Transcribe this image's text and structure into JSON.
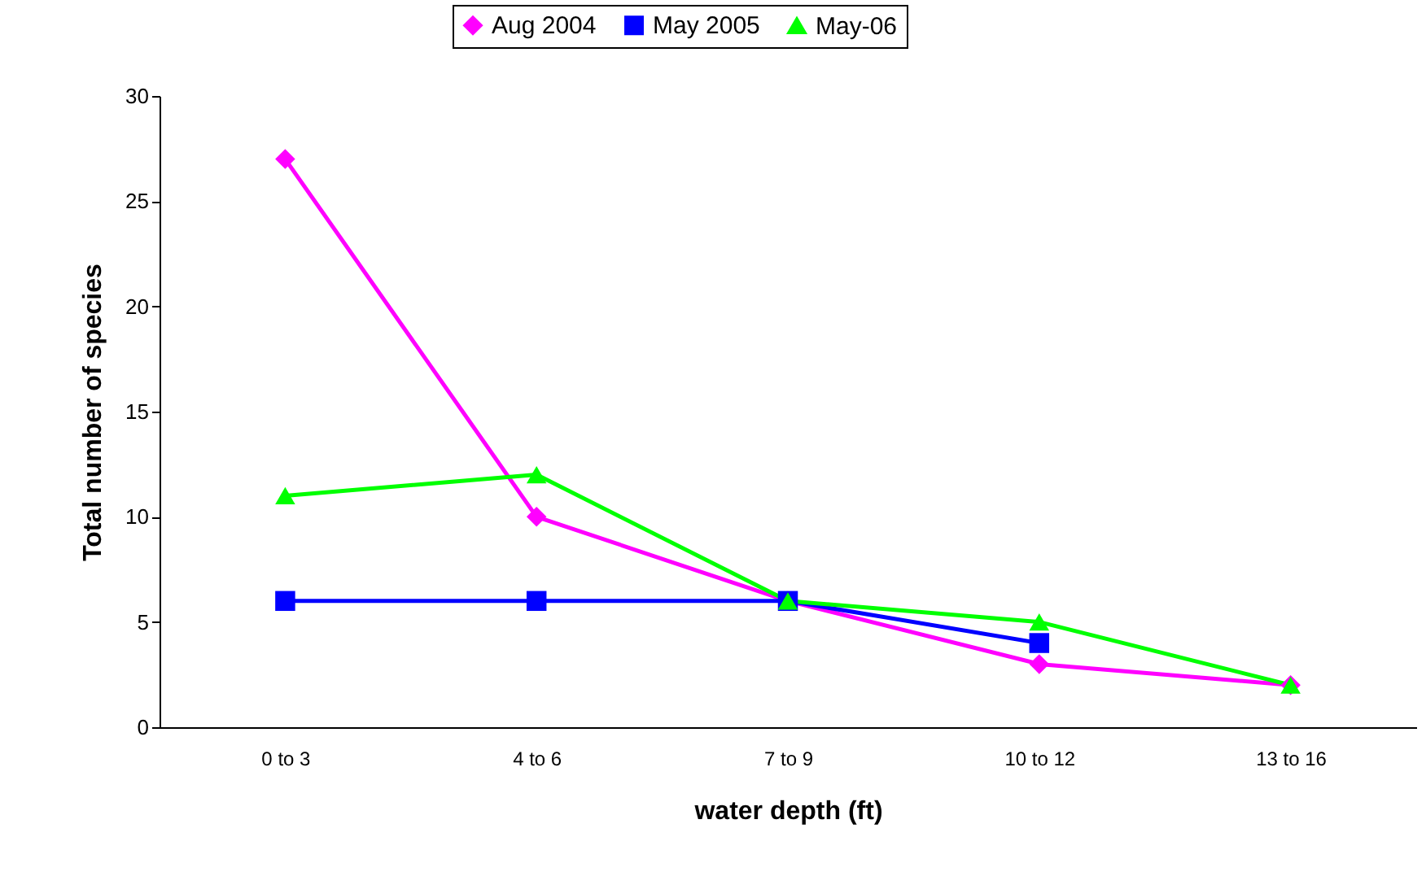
{
  "chart_data": {
    "type": "line",
    "xlabel": "water depth (ft)",
    "ylabel": "Total number of species",
    "categories": [
      "0 to 3",
      "4 to 6",
      "7 to 9",
      "10 to 12",
      "13 to 16"
    ],
    "series": [
      {
        "name": "Aug 2004",
        "color": "#ff00ff",
        "marker": "diamond",
        "values": [
          27,
          10,
          6,
          3,
          2
        ]
      },
      {
        "name": "May 2005",
        "color": "#0000ff",
        "marker": "square",
        "values": [
          6,
          6,
          6,
          4,
          null
        ]
      },
      {
        "name": "May-06",
        "color": "#00ff00",
        "marker": "triangle",
        "values": [
          11,
          12,
          6,
          5,
          2
        ]
      }
    ],
    "ylim": [
      0,
      30
    ],
    "yticks": [
      0,
      5,
      10,
      15,
      20,
      25,
      30
    ],
    "grid": false,
    "legend": "top"
  }
}
